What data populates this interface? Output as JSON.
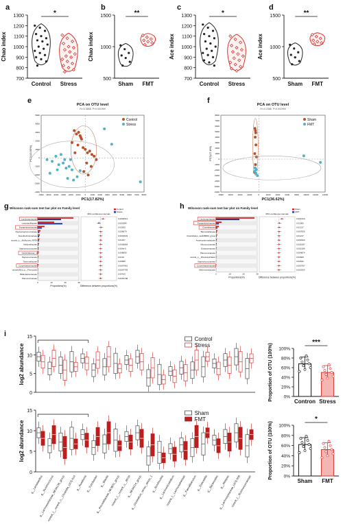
{
  "panel_letters": {
    "a": "a",
    "b": "b",
    "c": "c",
    "d": "d",
    "e": "e",
    "f": "f",
    "g": "g",
    "h": "h",
    "i": "i"
  },
  "colors": {
    "control": "#222222",
    "stress": "#d9332e",
    "stress_fill": "#f4b6b3",
    "pca_control": "#b5522c",
    "pca_stress": "#4fb3c6",
    "bar_blue": "#1f3d99",
    "bar_red": "#d42a2a",
    "fmt": "#b81f1f",
    "highlight": "#d9332e"
  },
  "chart_data": [
    {
      "id": "a",
      "type": "violin",
      "title": "",
      "ylabel": "Chao index",
      "ylim": [
        700,
        1300
      ],
      "yticks": [
        "700",
        "800",
        "900",
        "1000",
        "1100",
        "1200",
        "1300"
      ],
      "categories": [
        "Control",
        "Stress"
      ],
      "significance": "*",
      "series": [
        {
          "name": "Control",
          "values": [
            1200,
            1180,
            1150,
            1120,
            1100,
            1080,
            1060,
            1050,
            1020,
            1000,
            980,
            960,
            940,
            920,
            900,
            880,
            860,
            820
          ]
        },
        {
          "name": "Stress",
          "values": [
            1110,
            1080,
            1050,
            1030,
            1000,
            990,
            970,
            950,
            930,
            910,
            900,
            880,
            860,
            840,
            820,
            800,
            780,
            760
          ]
        }
      ]
    },
    {
      "id": "b",
      "type": "violin",
      "title": "",
      "ylabel": "Chao index",
      "ylim": [
        500,
        1500
      ],
      "yticks": [
        "500",
        "1000",
        "1500"
      ],
      "categories": [
        "Sham",
        "FMT"
      ],
      "significance": "**",
      "series": [
        {
          "name": "Sham",
          "values": [
            1020,
            960,
            900,
            860,
            820,
            760,
            700
          ]
        },
        {
          "name": "FMT",
          "values": [
            1180,
            1150,
            1120,
            1100,
            1080,
            1060,
            1030
          ]
        }
      ]
    },
    {
      "id": "c",
      "type": "violin",
      "title": "",
      "ylabel": "Ace index",
      "ylim": [
        700,
        1300
      ],
      "yticks": [
        "700",
        "800",
        "900",
        "1000",
        "1100",
        "1200",
        "1300"
      ],
      "categories": [
        "Control",
        "Stress"
      ],
      "significance": "*",
      "series": [
        {
          "name": "Control",
          "values": [
            1210,
            1180,
            1150,
            1120,
            1100,
            1080,
            1050,
            1030,
            1000,
            980,
            960,
            940,
            920,
            900,
            870,
            850,
            820
          ]
        },
        {
          "name": "Stress",
          "values": [
            1100,
            1070,
            1040,
            1010,
            990,
            970,
            950,
            930,
            910,
            890,
            870,
            850,
            830,
            810,
            790,
            770
          ]
        }
      ]
    },
    {
      "id": "d",
      "type": "violin",
      "title": "",
      "ylabel": "Ace index",
      "ylim": [
        500,
        1500
      ],
      "yticks": [
        "500",
        "1000",
        "1500"
      ],
      "categories": [
        "Sham",
        "FMT"
      ],
      "significance": "**",
      "series": [
        {
          "name": "Sham",
          "values": [
            1030,
            970,
            910,
            870,
            830,
            770,
            720
          ]
        },
        {
          "name": "FMT",
          "values": [
            1190,
            1160,
            1130,
            1100,
            1080,
            1060,
            1040
          ]
        }
      ]
    },
    {
      "id": "e",
      "type": "scatter",
      "title": "PCA on OTU level",
      "subtitle": "R²=0.3858, P<0.001999",
      "xlabel": "PC1(17.82%)",
      "ylabel": "PC2(13.95%)",
      "xlim": [
        -6000,
        8000
      ],
      "ylim": [
        -4000,
        5000
      ],
      "xticks": [
        "-6000",
        "-5000",
        "-4000",
        "-3000",
        "-2000",
        "-1000",
        "0",
        "1000",
        "2000",
        "3000",
        "4000",
        "5000",
        "6000",
        "7000",
        "8000"
      ],
      "yticks": [
        "-4000",
        "-3000",
        "-2000",
        "-1000",
        "0",
        "1000",
        "2000",
        "3000",
        "4000",
        "5000"
      ],
      "legend_position": "top-right",
      "series": [
        {
          "name": "Control",
          "x": [
            -1500,
            -1200,
            -900,
            -700,
            -500,
            -1800,
            -1000,
            -300,
            0,
            300,
            600,
            900,
            1200,
            1500,
            -600,
            -1400,
            200,
            800,
            -200,
            400
          ],
          "y": [
            3200,
            2800,
            3000,
            2600,
            2200,
            1800,
            1500,
            1200,
            1000,
            600,
            800,
            400,
            200,
            -200,
            2400,
            600,
            -600,
            -1000,
            -1600,
            -2000
          ]
        },
        {
          "name": "Stress",
          "x": [
            -5200,
            -4500,
            -4000,
            -3600,
            -3000,
            -2600,
            -2200,
            -1800,
            -4800,
            -3300,
            -2800,
            -2400,
            -1600,
            -1100,
            -700,
            2600,
            3600,
            7500,
            -3800,
            -2000
          ],
          "y": [
            -200,
            -400,
            200,
            -800,
            -600,
            -1200,
            -1000,
            -1400,
            -1800,
            400,
            -200,
            -2400,
            -2600,
            -2200,
            -1500,
            3400,
            1600,
            -2800,
            -1400,
            -200
          ]
        }
      ]
    },
    {
      "id": "f",
      "type": "scatter",
      "title": "PCA on OTU level",
      "subtitle": "R²=0.2368, P<0.002999",
      "xlabel": "PC1(36.62%)",
      "ylabel": "PC2(17.8%)",
      "xlim": [
        -8000,
        14000
      ],
      "ylim": [
        -6000,
        8000
      ],
      "xticks": [
        "-8000",
        "-6000",
        "-4000",
        "-2000",
        "0",
        "2000",
        "4000",
        "6000",
        "8000",
        "10000",
        "12000",
        "14000"
      ],
      "yticks": [
        "-6000",
        "-5000",
        "-4000",
        "-3000",
        "-2000",
        "-1000",
        "0",
        "1000",
        "2000",
        "3000",
        "4000",
        "5000",
        "6000",
        "7000",
        "8000"
      ],
      "legend_position": "top-right",
      "series": [
        {
          "name": "Sham",
          "x": [
            -800,
            -700,
            -650,
            -750,
            -600,
            -850,
            -500,
            -700,
            -900
          ],
          "y": [
            5600,
            5200,
            4800,
            4000,
            2600,
            1000,
            400,
            -1000,
            -2400
          ]
        },
        {
          "name": "FMT",
          "x": [
            -900,
            -600,
            -300,
            9500,
            13000,
            -800,
            -500
          ],
          "y": [
            -2200,
            -2600,
            -3000,
            600,
            -600,
            -1600,
            -1900
          ]
        }
      ]
    },
    {
      "id": "g",
      "type": "bar",
      "title": "Wilcoxon rank-sum test bar plot on Family level",
      "xlabel": "Proportions(%)",
      "xlabel2": "Difference between proportions(%)",
      "ci_label": "95% confidence intervals",
      "legend": [
        "Control",
        "Stress"
      ],
      "categories": [
        "Lachnospiraceae",
        "Lactobacillaceae",
        "Erysipelotrichaceae",
        "Peptostreptococcaceae",
        "Desulfovibrionaceae",
        "norank_o__Mollicutes_RF39",
        "Veillonellaceae",
        "Staphylococcaceae",
        "Clostridiaceae_1",
        "Peptococcaceae",
        "Tannerellaceae",
        "Corynebacteriaceae",
        "unclassified_p__Firmicutes",
        "Bifidobacteriaceae",
        "Planococcaceae"
      ],
      "highlighted": [
        "Lachnospiraceae",
        "Erysipelotrichaceae",
        "Clostridiaceae_1",
        "Corynebacteriaceae"
      ],
      "series": [
        {
          "name": "Control",
          "values": [
            26,
            12,
            5,
            2,
            1.5,
            1.2,
            0.8,
            0.6,
            0.8,
            0.5,
            0.4,
            0.6,
            0.3,
            0.3,
            0.2
          ]
        },
        {
          "name": "Stress",
          "values": [
            17,
            18,
            3,
            1.2,
            1,
            0.8,
            0.6,
            0.5,
            0.4,
            0.3,
            0.3,
            0.2,
            0.2,
            0.1,
            0.1
          ]
        }
      ],
      "pvalues": [
        "0.0003513",
        "0.001984",
        "0.03633",
        "0.006679",
        "0.0004633",
        "0.01877",
        "0.0005864",
        "0.004e-5",
        "0.008059",
        "0.0119",
        "0.00865",
        "0.0007961",
        "0.0007793",
        "0.00415",
        "0.0001798"
      ]
    },
    {
      "id": "h",
      "type": "bar",
      "title": "Wilcoxon rank-sum test bar plot on Family level",
      "xlabel": "Proportions(%)",
      "xlabel2": "Difference between proportions(%)",
      "ci_label": "95% confidence intervals",
      "legend": [
        "Sham",
        "FMT"
      ],
      "categories": [
        "Lachnospiraceae",
        "Erysipelotrichaceae",
        "Clostridiaceae",
        "Barnesiellaceae",
        "Clostridiales_vadinBB60_group",
        "Anaeroplasmataceae",
        "Micrococcaceae",
        "Eubacteriaceae",
        "Planococcaceae",
        "norank_o__Rhodospirillales",
        "Staphylococcaceae",
        "Corynebacteriaceae",
        "Akkermansiaceae"
      ],
      "highlighted": [
        "Lachnospiraceae",
        "Erysipelotrichaceae",
        "Clostridiaceae",
        "Corynebacteriaceae"
      ],
      "series": [
        {
          "name": "Sham",
          "values": [
            28,
            4,
            2,
            1,
            0.8,
            0.6,
            0.5,
            0.4,
            0.3,
            0.3,
            0.2,
            0.2,
            0.1
          ]
        },
        {
          "name": "FMT",
          "values": [
            17,
            2,
            1,
            0.5,
            0.4,
            0.3,
            0.3,
            0.2,
            0.2,
            0.2,
            0.1,
            0.1,
            0.05
          ]
        }
      ],
      "pvalues": [
        "0.001419",
        "0.01905",
        "0.01217",
        "0.007835",
        "0.01217",
        "0.002333",
        "0.001087",
        "0.002186",
        "0.004874",
        "0.03609",
        "0.02642",
        "0.003757",
        "0.002333"
      ]
    },
    {
      "id": "i-top",
      "type": "box",
      "ylabel": "log2 abundance",
      "ylim": [
        0,
        15
      ],
      "yticks": [
        "0",
        "5",
        "10",
        "15"
      ],
      "legend": [
        "Control",
        "Stress"
      ],
      "n_categories": 20
    },
    {
      "id": "i-bottom",
      "type": "box",
      "ylabel": "log2 abundance",
      "ylim": [
        0,
        15
      ],
      "yticks": [
        "0",
        "5",
        "10",
        "15"
      ],
      "legend": [
        "Sham",
        "FMT"
      ],
      "categories": [
        "g__Lactobacillus",
        "g__Ruminococcus",
        "g__Lachnospiraceae_NK4A136_group",
        "norank_f__norank_o__Clostridia_UCG-014",
        "g__Roseburia",
        "g__Turicibacter",
        "g__Blautia",
        "g__Prevotellaceae_NK3B31_group",
        "norank_f__norank_o__RF39",
        "g__NK4A214_group",
        "g__Clostridium_sensu_stricto_1",
        "g__Romboutsia",
        "g__Lachnoclostridium",
        "norank_f__Lachnospiraceae",
        "g__Faecalibaculum",
        "g__Dubosiella",
        "g__Bacteroides",
        "g__Alistipes",
        "g__Lachnospiraceae_UCG-006",
        "norank_f__Ruminococcaceae"
      ]
    },
    {
      "id": "i-right-top",
      "type": "bar",
      "ylabel": "Proportion of OTU (100%)",
      "ylim": [
        0,
        100
      ],
      "yticks": [
        "0%",
        "20%",
        "40%",
        "60%",
        "80%",
        "100%"
      ],
      "categories": [
        "Contron",
        "Stress"
      ],
      "values": [
        68,
        50
      ],
      "significance": "***"
    },
    {
      "id": "i-right-bottom",
      "type": "bar",
      "ylabel": "Proportion of OTU (100%)",
      "ylim": [
        0,
        100
      ],
      "yticks": [
        "0%",
        "20%",
        "40%",
        "60%",
        "80%",
        "100%"
      ],
      "categories": [
        "Sham",
        "FMT"
      ],
      "values": [
        62,
        52
      ],
      "significance": "*"
    }
  ]
}
